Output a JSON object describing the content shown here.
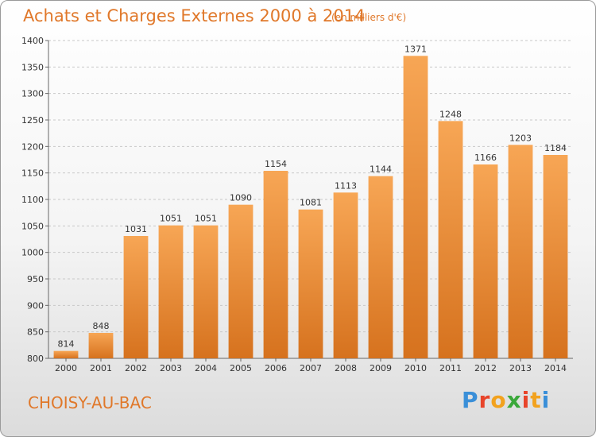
{
  "header": {
    "title": "Achats et Charges Externes 2000 à 2014",
    "subtitle": "(en milliers d'€)"
  },
  "footer": {
    "city": "CHOISY-AU-BAC",
    "brand": "Proxiti",
    "brand_colors": [
      "#3a8fd8",
      "#e8442a",
      "#f2a21e",
      "#3aa83a",
      "#e8442a",
      "#f2a21e",
      "#3a8fd8"
    ]
  },
  "colors": {
    "bar_light": "#f7a655",
    "bar_dark": "#d6721e",
    "accent": "#e0782a",
    "grid": "#c8c8c8",
    "background_top": "#ffffff",
    "background_bottom": "#dcdcdc"
  },
  "chart_data": {
    "type": "bar",
    "categories": [
      "2000",
      "2001",
      "2002",
      "2003",
      "2004",
      "2005",
      "2006",
      "2007",
      "2008",
      "2009",
      "2010",
      "2011",
      "2012",
      "2013",
      "2014"
    ],
    "values": [
      814,
      848,
      1031,
      1051,
      1051,
      1090,
      1154,
      1081,
      1113,
      1144,
      1371,
      1248,
      1166,
      1203,
      1184
    ],
    "title": "Achats et Charges Externes 2000 à 2014",
    "subtitle": "(en milliers d'€)",
    "xlabel": "",
    "ylabel": "",
    "ylim": [
      800,
      1400
    ],
    "yticks": [
      800,
      850,
      900,
      950,
      1000,
      1050,
      1100,
      1150,
      1200,
      1250,
      1300,
      1350,
      1400
    ],
    "grid": true,
    "legend": "none"
  }
}
